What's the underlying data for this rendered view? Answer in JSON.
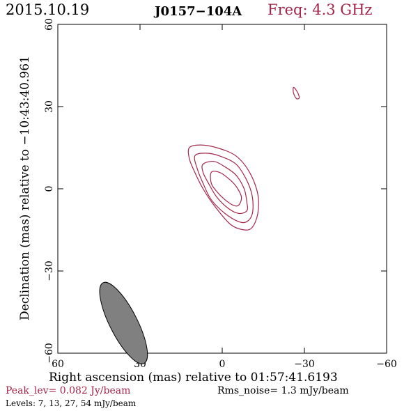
{
  "header": {
    "date": "2015.10.19",
    "source": "J0157−104A",
    "freq": "Freq: 4.3 GHz"
  },
  "footer": {
    "peak": "Peak_lev=  0.082 Jy/beam",
    "rms": "Rms_noise=  1.3 mJy/beam",
    "levels": "Levels:   7,  13,  27,  54 mJy/beam"
  },
  "colors": {
    "contour": "#a3264a",
    "beam": "#808080",
    "text_accent": "#a3264a"
  },
  "chart_data": {
    "type": "contour",
    "title": "",
    "xlabel": "Right ascension (mas) relative to 01:57:41.6193",
    "ylabel": "Declination (mas) relative to −10:43:40.961",
    "xlim": [
      60,
      -60
    ],
    "ylim": [
      -60,
      60
    ],
    "xticks": [
      60,
      30,
      0,
      -30,
      -60
    ],
    "yticks": [
      -60,
      -30,
      0,
      30,
      60
    ],
    "xtick_labels": [
      "60",
      "30",
      "0",
      "−30",
      "−60"
    ],
    "ytick_labels": [
      "−60",
      "−30",
      "0",
      "30",
      "60"
    ],
    "levels_mJy_per_beam": [
      7,
      13,
      27,
      54
    ],
    "contours": [
      {
        "level": 7,
        "points": [
          [
            12,
            15
          ],
          [
            8,
            16
          ],
          [
            2,
            15
          ],
          [
            -5,
            12
          ],
          [
            -10,
            6
          ],
          [
            -13,
            -2
          ],
          [
            -13,
            -9
          ],
          [
            -11,
            -14
          ],
          [
            -8,
            -15
          ],
          [
            -3,
            -13
          ],
          [
            3,
            -6
          ],
          [
            7,
            0
          ],
          [
            10,
            6
          ],
          [
            12,
            11
          ],
          [
            12,
            15
          ]
        ]
      },
      {
        "level": 13,
        "points": [
          [
            10,
            12
          ],
          [
            6,
            13
          ],
          [
            1,
            12
          ],
          [
            -5,
            9
          ],
          [
            -9,
            3
          ],
          [
            -11,
            -3
          ],
          [
            -11,
            -9
          ],
          [
            -9,
            -12
          ],
          [
            -6,
            -12
          ],
          [
            -1,
            -9
          ],
          [
            4,
            -4
          ],
          [
            7,
            2
          ],
          [
            9,
            7
          ],
          [
            10,
            12
          ]
        ]
      },
      {
        "level": 27,
        "points": [
          [
            7,
            9
          ],
          [
            3,
            10
          ],
          [
            -1,
            8
          ],
          [
            -5,
            5
          ],
          [
            -8,
            0
          ],
          [
            -9,
            -5
          ],
          [
            -9,
            -8
          ],
          [
            -6,
            -9
          ],
          [
            -2,
            -7
          ],
          [
            2,
            -3
          ],
          [
            5,
            2
          ],
          [
            7,
            6
          ],
          [
            7,
            9
          ]
        ]
      },
      {
        "level": 54,
        "points": [
          [
            4,
            6
          ],
          [
            1,
            6
          ],
          [
            -2,
            4
          ],
          [
            -5,
            1
          ],
          [
            -7,
            -3
          ],
          [
            -6,
            -6
          ],
          [
            -4,
            -6
          ],
          [
            -1,
            -4
          ],
          [
            2,
            -1
          ],
          [
            4,
            2
          ],
          [
            4,
            6
          ]
        ]
      },
      {
        "level": 7,
        "points": [
          [
            -26,
            37
          ],
          [
            -27,
            36
          ],
          [
            -28,
            34
          ],
          [
            -28,
            33
          ],
          [
            -27,
            33
          ],
          [
            -26,
            35
          ],
          [
            -26,
            37
          ]
        ]
      }
    ],
    "beam": {
      "center": [
        36,
        -49
      ],
      "major": 16.5,
      "minor": 5.0,
      "pa_deg": 27
    }
  }
}
